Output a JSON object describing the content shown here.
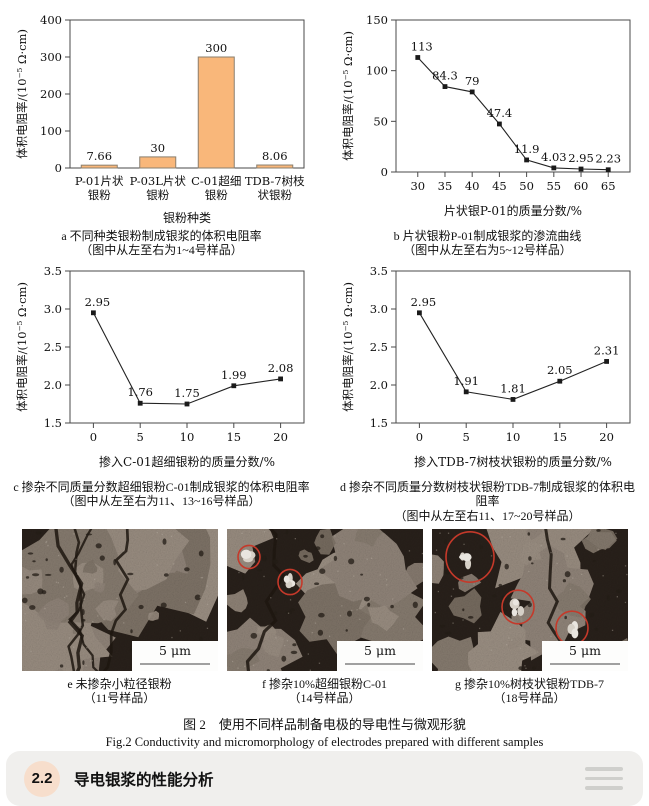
{
  "chart_data": [
    {
      "id": "a",
      "type": "bar",
      "categories": [
        [
          "P-01片状",
          "银粉"
        ],
        [
          "P-03L片状",
          "银粉"
        ],
        [
          "C-01超细",
          "银粉"
        ],
        [
          "TDB-7树枝",
          "状银粉"
        ]
      ],
      "values": [
        7.66,
        30,
        300,
        8.06
      ],
      "value_labels": [
        "7.66",
        "30",
        "300",
        "8.06"
      ],
      "xlabel": "银粉种类",
      "ylabel": "体积电阻率/(10⁻⁵ Ω·cm)",
      "ylim": [
        0,
        400
      ],
      "yticks": [
        {
          "v": 0,
          "label": "0"
        },
        {
          "v": 100,
          "label": "100"
        },
        {
          "v": 200,
          "label": "200"
        },
        {
          "v": 300,
          "label": "300"
        },
        {
          "v": 400,
          "label": "400"
        }
      ],
      "grid": false,
      "caption": [
        "a 不同种类银粉制成银浆的体积电阻率",
        "（图中从左至右为1~4号样品）"
      ]
    },
    {
      "id": "b",
      "type": "line",
      "x": [
        30,
        35,
        40,
        45,
        50,
        55,
        60,
        65
      ],
      "values": [
        113,
        84.3,
        79,
        47.4,
        11.9,
        4.03,
        2.95,
        2.23
      ],
      "value_labels": [
        "113",
        "84.3",
        "79",
        "47.4",
        "11.9",
        "4.03",
        "2.95",
        "2.23"
      ],
      "xticks": [
        {
          "v": 30,
          "label": "30"
        },
        {
          "v": 35,
          "label": "35"
        },
        {
          "v": 40,
          "label": "40"
        },
        {
          "v": 45,
          "label": "45"
        },
        {
          "v": 50,
          "label": "50"
        },
        {
          "v": 55,
          "label": "55"
        },
        {
          "v": 60,
          "label": "60"
        },
        {
          "v": 65,
          "label": "65"
        }
      ],
      "xlim": [
        26,
        69
      ],
      "xlabel": "片状银P-01的质量分数/%",
      "ylabel": "体积电阻率/(10⁻⁵ Ω·cm)",
      "ylim": [
        0,
        150
      ],
      "yticks": [
        {
          "v": 0,
          "label": "0"
        },
        {
          "v": 50,
          "label": "50"
        },
        {
          "v": 100,
          "label": "100"
        },
        {
          "v": 150,
          "label": "150"
        }
      ],
      "grid": false,
      "caption": [
        "b 片状银粉P-01制成银浆的渗流曲线",
        "（图中从左至右为5~12号样品）"
      ]
    },
    {
      "id": "c",
      "type": "line",
      "x": [
        0,
        5,
        10,
        15,
        20
      ],
      "values": [
        2.95,
        1.76,
        1.75,
        1.99,
        2.08
      ],
      "value_labels": [
        "2.95",
        "1.76",
        "1.75",
        "1.99",
        "2.08"
      ],
      "xticks": [
        {
          "v": 0,
          "label": "0"
        },
        {
          "v": 5,
          "label": "5"
        },
        {
          "v": 10,
          "label": "10"
        },
        {
          "v": 15,
          "label": "15"
        },
        {
          "v": 20,
          "label": "20"
        }
      ],
      "xlim": [
        -2.5,
        22.5
      ],
      "xlabel": "掺入C-01超细银粉的质量分数/%",
      "ylabel": "体积电阻率/(10⁻⁵ Ω·cm)",
      "ylim": [
        1.5,
        3.5
      ],
      "yticks": [
        {
          "v": 1.5,
          "label": "1.5"
        },
        {
          "v": 2.0,
          "label": "2.0"
        },
        {
          "v": 2.5,
          "label": "2.5"
        },
        {
          "v": 3.0,
          "label": "3.0"
        },
        {
          "v": 3.5,
          "label": "3.5"
        }
      ],
      "grid": false,
      "caption": [
        "c 掺杂不同质量分数超细银粉C-01制成银浆的体积电阻率",
        "（图中从左至右为11、13~16号样品）"
      ]
    },
    {
      "id": "d",
      "type": "line",
      "x": [
        0,
        5,
        10,
        15,
        20
      ],
      "values": [
        2.95,
        1.91,
        1.81,
        2.05,
        2.31
      ],
      "value_labels": [
        "2.95",
        "1.91",
        "1.81",
        "2.05",
        "2.31"
      ],
      "xticks": [
        {
          "v": 0,
          "label": "0"
        },
        {
          "v": 5,
          "label": "5"
        },
        {
          "v": 10,
          "label": "10"
        },
        {
          "v": 15,
          "label": "15"
        },
        {
          "v": 20,
          "label": "20"
        }
      ],
      "xlim": [
        -2.5,
        22.5
      ],
      "xlabel": "掺入TDB-7树枝状银粉的质量分数/%",
      "ylabel": "体积电阻率/(10⁻⁵ Ω·cm)",
      "ylim": [
        1.5,
        3.5
      ],
      "yticks": [
        {
          "v": 1.5,
          "label": "1.5"
        },
        {
          "v": 2.0,
          "label": "2.0"
        },
        {
          "v": 2.5,
          "label": "2.5"
        },
        {
          "v": 3.0,
          "label": "3.0"
        },
        {
          "v": 3.5,
          "label": "3.5"
        }
      ],
      "grid": false,
      "caption": [
        "d 掺杂不同质量分数树枝状银粉TDB-7制成银浆的体积电阻率",
        "（图中从左至右11、17~20号样品）"
      ]
    }
  ],
  "sem_panels": [
    {
      "id": "e",
      "scale_label": "5 μm",
      "highlight_circle_count": 0,
      "caption": [
        "e 未掺杂小粒径银粉",
        "（11号样品）"
      ]
    },
    {
      "id": "f",
      "scale_label": "5 μm",
      "highlight_circle_count": 2,
      "caption": [
        "f 掺杂10%超细银粉C-01",
        "（14号样品）"
      ]
    },
    {
      "id": "g",
      "scale_label": "5 μm",
      "highlight_circle_count": 3,
      "caption": [
        "g 掺杂10%树枝状银粉TDB-7",
        "（18号样品）"
      ]
    }
  ],
  "figure_caption": {
    "zh": "图 2　使用不同样品制备电极的导电性与微观形貌",
    "en": "Fig.2 Conductivity and micromorphology of electrodes prepared with different samples"
  },
  "section": {
    "number": "2.2",
    "title": "导电银浆的性能分析"
  },
  "colors": {
    "bar_fill": "#F9B77A",
    "bar_stroke": "#8a7f6e",
    "line": "#222222",
    "marker": "#1a1a1a",
    "plot_border": "#4a4a4a",
    "highlight_circle": "#c5392a",
    "section_bar_bg": "#f0efed",
    "section_badge_bg": "#f7decc",
    "sem_light": "#8f8378",
    "sem_dark": "#28201a"
  }
}
